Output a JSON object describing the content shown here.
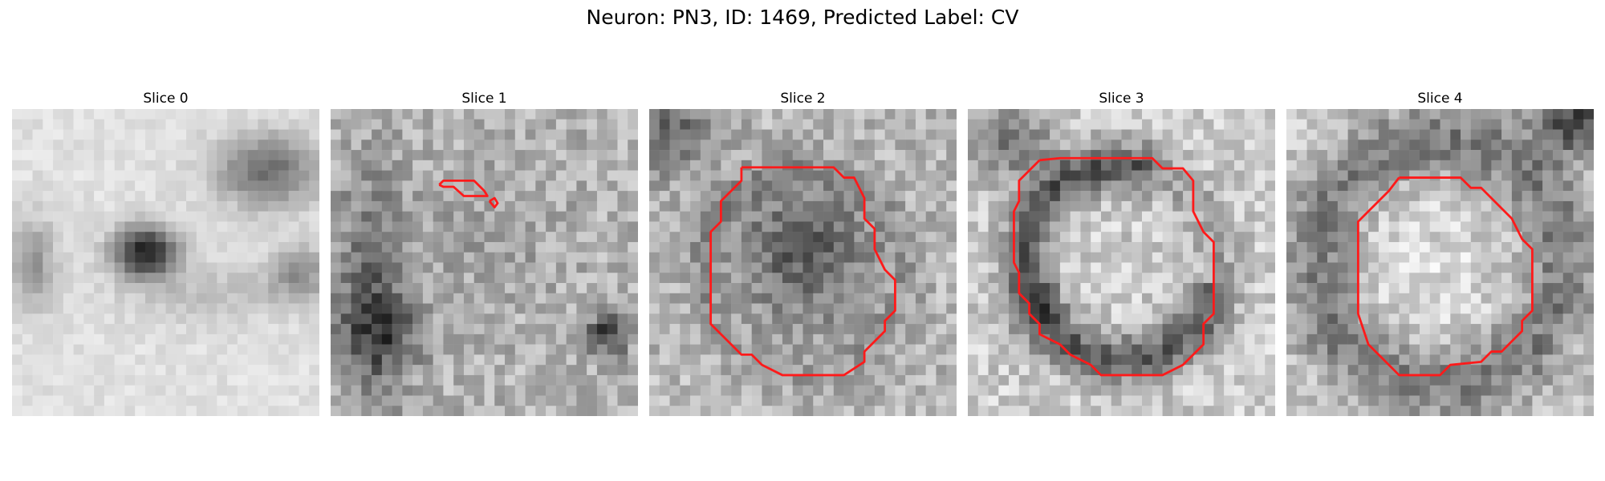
{
  "figure": {
    "title": "Neuron: PN3, ID: 1469, Predicted Label: CV"
  },
  "colors": {
    "contour": "#ff1a1a",
    "background": "#ffffff"
  },
  "panels": [
    {
      "title": "Slice 0",
      "seed": 11,
      "has_contour": false
    },
    {
      "title": "Slice 1",
      "seed": 23,
      "has_contour": true
    },
    {
      "title": "Slice 2",
      "seed": 37,
      "has_contour": true
    },
    {
      "title": "Slice 3",
      "seed": 53,
      "has_contour": true
    },
    {
      "title": "Slice 4",
      "seed": 71,
      "has_contour": true
    }
  ]
}
